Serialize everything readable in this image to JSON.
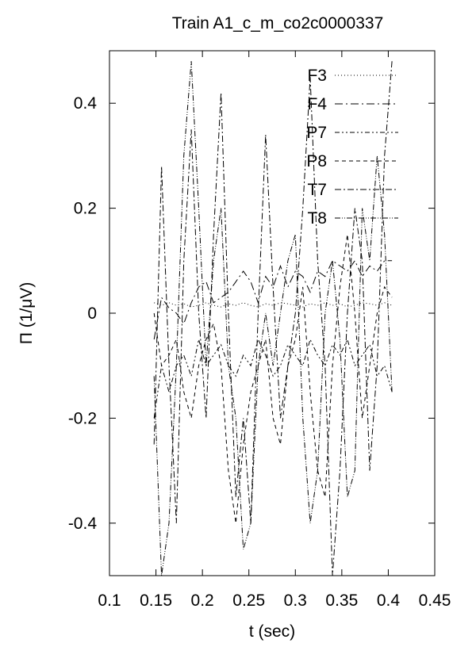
{
  "chart_data": {
    "type": "line",
    "title": "Train A1_c_m_co2c0000337",
    "xlabel": "t (sec)",
    "ylabel": "Π (1/μV)",
    "xlim": [
      0.1,
      0.45
    ],
    "ylim": [
      -0.5,
      0.5
    ],
    "xticks": [
      "0.1",
      "0.15",
      "0.2",
      "0.25",
      "0.3",
      "0.35",
      "0.4",
      "0.45"
    ],
    "yticks": [
      "-0.4",
      "-0.2",
      "0",
      "0.2",
      "0.4"
    ],
    "grid": false,
    "legend_position": "top-right",
    "x": [
      0.148,
      0.156,
      0.164,
      0.172,
      0.18,
      0.188,
      0.196,
      0.204,
      0.212,
      0.22,
      0.228,
      0.236,
      0.244,
      0.252,
      0.26,
      0.268,
      0.276,
      0.284,
      0.292,
      0.3,
      0.308,
      0.316,
      0.324,
      0.332,
      0.34,
      0.348,
      0.356,
      0.364,
      0.372,
      0.38,
      0.388,
      0.396,
      0.404
    ],
    "series": [
      {
        "name": "F3",
        "dash": "1,3",
        "values": [
          0.02,
          0.015,
          0.02,
          0.015,
          0.018,
          0.012,
          0.015,
          0.02,
          0.015,
          0.012,
          0.018,
          0.015,
          0.02,
          0.015,
          0.012,
          0.018,
          0.015,
          0.02,
          0.018,
          0.015,
          0.012,
          0.018,
          0.015,
          0.02,
          0.015,
          0.018,
          0.012,
          0.015,
          0.02,
          0.018,
          0.015,
          0.02,
          0.015
        ]
      },
      {
        "name": "F4",
        "dash": "10,4,2,4",
        "values": [
          -0.05,
          0.03,
          0.01,
          0.0,
          -0.02,
          0.02,
          0.05,
          0.06,
          0.02,
          0.03,
          0.04,
          0.06,
          0.08,
          0.06,
          0.02,
          0.07,
          0.05,
          0.09,
          0.05,
          0.08,
          0.07,
          0.04,
          0.08,
          0.07,
          0.1,
          0.09,
          0.08,
          0.1,
          0.07,
          0.09,
          0.08,
          0.1,
          0.1
        ]
      },
      {
        "name": "P7",
        "dash": "6,3,2,3,2,3",
        "values": [
          -0.2,
          -0.1,
          -0.15,
          -0.1,
          -0.08,
          -0.12,
          -0.05,
          -0.1,
          -0.08,
          -0.06,
          -0.1,
          -0.12,
          -0.08,
          -0.1,
          -0.05,
          -0.08,
          -0.12,
          -0.1,
          -0.06,
          -0.08,
          -0.1,
          -0.05,
          -0.08,
          -0.1,
          -0.06,
          -0.08,
          -0.05,
          -0.1,
          -0.08,
          -0.06,
          -0.12,
          -0.1,
          -0.15
        ]
      },
      {
        "name": "P8",
        "dash": "5,4",
        "values": [
          0.0,
          -0.1,
          -0.08,
          -0.05,
          -0.15,
          -0.2,
          -0.1,
          -0.05,
          -0.02,
          -0.1,
          -0.3,
          -0.4,
          -0.25,
          -0.15,
          -0.1,
          -0.05,
          -0.2,
          -0.25,
          -0.1,
          -0.05,
          0.05,
          -0.15,
          -0.3,
          -0.35,
          -0.1,
          0.05,
          0.15,
          0.0,
          -0.2,
          -0.1,
          0.0,
          0.05,
          0.03
        ]
      },
      {
        "name": "T7",
        "dash": "8,3,2,3",
        "values": [
          -0.25,
          0.28,
          -0.1,
          -0.4,
          0.1,
          0.35,
          0.0,
          -0.2,
          0.15,
          0.42,
          0.0,
          -0.35,
          -0.2,
          -0.4,
          0.0,
          0.34,
          0.05,
          -0.2,
          -0.1,
          0.0,
          0.2,
          0.45,
          0.1,
          -0.1,
          -0.5,
          -0.3,
          0.0,
          0.2,
          0.1,
          -0.3,
          -0.1,
          0.3,
          0.48
        ]
      },
      {
        "name": "T8",
        "dash": "7,2,1,2,1,2",
        "values": [
          -0.12,
          -0.5,
          -0.4,
          -0.1,
          0.3,
          0.48,
          0.2,
          -0.1,
          0.1,
          0.2,
          -0.1,
          -0.2,
          -0.45,
          -0.4,
          -0.1,
          0.0,
          -0.1,
          0.0,
          0.1,
          0.15,
          -0.2,
          -0.4,
          -0.3,
          0.0,
          0.1,
          -0.05,
          -0.35,
          -0.3,
          0.2,
          0.1,
          0.3,
          0.15,
          -0.15
        ]
      }
    ]
  }
}
